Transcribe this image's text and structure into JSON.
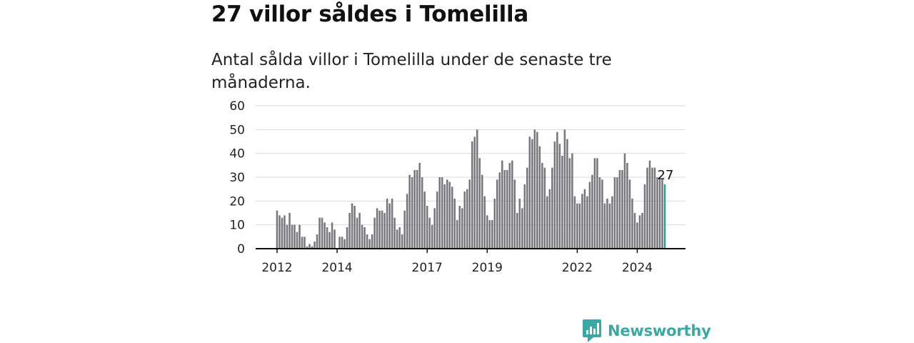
{
  "header": {
    "title": "27 villor såldes i Tomelilla",
    "subtitle": "Antal sålda villor i Tomelilla under de senaste tre månaderna."
  },
  "brand": {
    "name": "Newsworthy",
    "icon": "newsworthy-logo-icon",
    "color": "#3aa9a4"
  },
  "colors": {
    "bar": "#76767b",
    "highlight": "#2a9d95",
    "grid": "#d9d9d9",
    "axis": "#111111"
  },
  "chart_data": {
    "type": "bar",
    "ylim": [
      0,
      60
    ],
    "y_ticks": [
      "0",
      "10",
      "20",
      "30",
      "40",
      "50",
      "60"
    ],
    "x_ticks": [
      {
        "label": "2012",
        "index": 0
      },
      {
        "label": "2014",
        "index": 24
      },
      {
        "label": "2017",
        "index": 60
      },
      {
        "label": "2019",
        "index": 84
      },
      {
        "label": "2022",
        "index": 120
      },
      {
        "label": "2024",
        "index": 144
      }
    ],
    "series": [
      {
        "values": [
          16,
          14,
          13,
          14,
          10,
          15,
          10,
          10,
          7,
          10,
          5,
          5,
          1,
          2,
          1,
          3,
          6,
          13,
          13,
          11,
          9,
          7,
          11,
          8,
          0,
          5,
          5,
          4,
          9,
          15,
          19,
          18,
          13,
          15,
          10,
          9,
          6,
          4,
          6,
          13,
          17,
          16,
          16,
          15,
          21,
          19,
          21,
          13,
          8,
          9,
          6,
          16,
          23,
          31,
          30,
          33,
          33,
          36,
          30,
          24,
          18,
          13,
          10,
          17,
          24,
          30,
          30,
          27,
          29,
          28,
          26,
          21,
          12,
          18,
          17,
          24,
          25,
          29,
          45,
          47,
          50,
          38,
          31,
          22,
          14,
          12,
          12,
          21,
          29,
          32,
          37,
          33,
          33,
          36,
          37,
          29,
          15,
          21,
          17,
          27,
          34,
          47,
          46,
          50,
          49,
          43,
          36,
          34,
          22,
          25,
          34,
          45,
          49,
          44,
          39,
          50,
          46,
          38,
          40,
          22,
          19,
          19,
          23,
          25,
          22,
          28,
          31,
          38,
          38,
          30,
          29,
          19,
          21,
          19,
          22,
          30,
          30,
          33,
          33,
          40,
          36,
          29,
          21,
          15,
          11,
          14,
          15,
          27,
          34,
          37,
          34,
          34,
          30,
          29,
          29,
          27
        ]
      }
    ],
    "highlight_label": "27"
  }
}
